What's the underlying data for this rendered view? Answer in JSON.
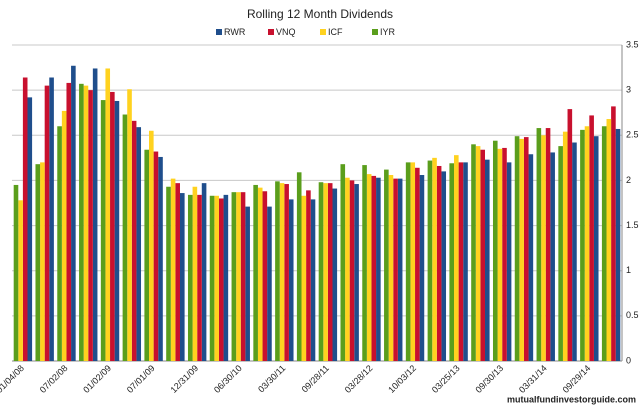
{
  "chart_data": {
    "type": "bar",
    "title": "Rolling 12 Month Dividends",
    "categories": [
      "01/04/08",
      null,
      "07/02/08",
      null,
      "01/02/09",
      null,
      "07/01/09",
      null,
      "12/31/09",
      null,
      "06/30/10",
      null,
      "03/30/11",
      null,
      "09/28/11",
      null,
      "03/28/12",
      null,
      "10/03/12",
      null,
      "03/25/13",
      null,
      "09/30/13",
      null,
      "03/31/14",
      null,
      "09/29/14",
      null
    ],
    "series": [
      {
        "name": "RWR",
        "color": "#1f4e8c",
        "values": [
          2.92,
          3.14,
          3.27,
          3.24,
          2.88,
          2.59,
          2.26,
          1.86,
          1.97,
          1.84,
          1.71,
          1.71,
          1.79,
          1.79,
          1.91,
          1.96,
          2.03,
          2.02,
          2.06,
          2.1,
          2.2,
          2.23,
          2.2,
          2.29,
          2.31,
          2.42,
          2.49,
          2.57
        ]
      },
      {
        "name": "VNQ",
        "color": "#c8102e",
        "values": [
          3.14,
          3.05,
          3.08,
          3.0,
          2.98,
          2.66,
          2.32,
          1.97,
          1.84,
          1.8,
          1.87,
          1.88,
          1.96,
          1.89,
          1.97,
          2.0,
          2.05,
          2.02,
          2.14,
          2.16,
          2.2,
          2.34,
          2.36,
          2.48,
          2.58,
          2.79,
          2.72,
          2.82
        ]
      },
      {
        "name": "ICF",
        "color": "#ffd21f",
        "values": [
          1.78,
          2.2,
          2.77,
          3.05,
          3.24,
          3.01,
          2.55,
          2.02,
          1.93,
          1.83,
          1.87,
          1.92,
          1.97,
          1.83,
          1.97,
          2.03,
          2.07,
          2.06,
          2.2,
          2.25,
          2.28,
          2.38,
          2.35,
          2.46,
          2.5,
          2.54,
          2.6,
          2.68
        ]
      },
      {
        "name": "IYR",
        "color": "#5a9e1c",
        "values": [
          1.95,
          2.18,
          2.6,
          3.07,
          2.89,
          2.73,
          2.34,
          1.93,
          1.84,
          1.83,
          1.87,
          1.95,
          1.99,
          2.09,
          1.98,
          2.18,
          2.17,
          2.12,
          2.2,
          2.22,
          2.19,
          2.4,
          2.44,
          2.49,
          2.58,
          2.38,
          2.56,
          2.6
        ]
      }
    ],
    "ylim": [
      0,
      3.5
    ],
    "yticks": [
      0,
      0.5,
      1,
      1.5,
      2,
      2.5,
      3,
      3.5
    ],
    "grid": true,
    "legend": "top",
    "source": "mutualfundinvestorguide.com"
  }
}
